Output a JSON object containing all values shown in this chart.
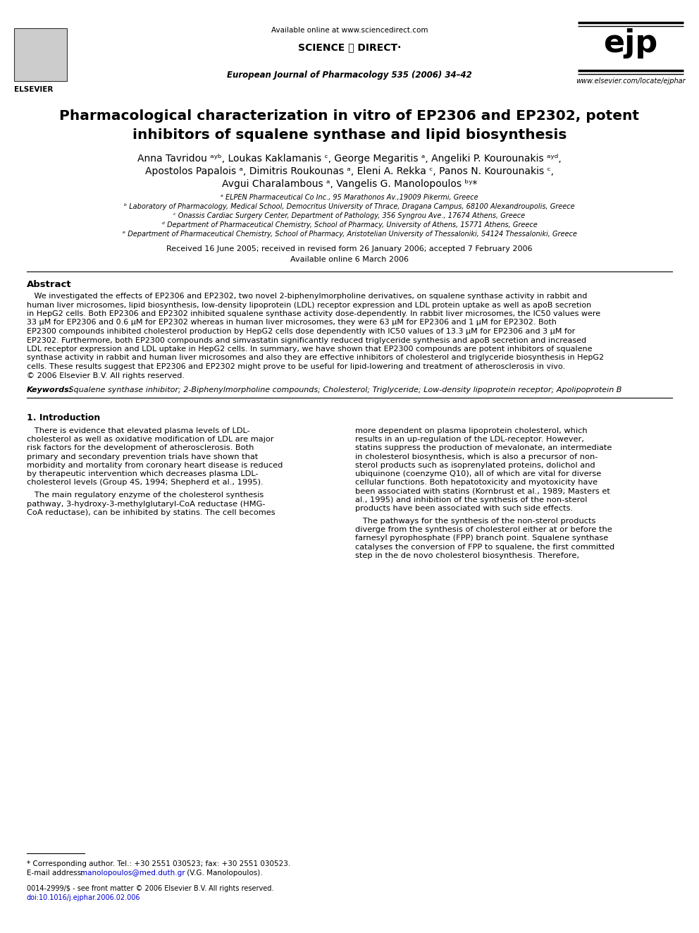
{
  "bg_color": "#ffffff",
  "header": {
    "available_online": "Available online at www.sciencedirect.com",
    "sciencedirect_text": "SCIENCE ⓐ DIRECT·",
    "journal_name": "European Journal of Pharmacology 535 (2006) 34–42",
    "ejp_text": "ejp",
    "website": "www.elsevier.com/locate/ejphar"
  },
  "title_line1": "Pharmacological characterization in vitro of EP2306 and EP2302, potent",
  "title_line2": "inhibitors of squalene synthase and lipid biosynthesis",
  "author_line1": "Anna Tavridou ᵃʸᵇ, Loukas Kaklamanis ᶜ, George Megaritis ᵃ, Angeliki P. Kourounakis ᵃʸᵈ,",
  "author_line2": "Apostolos Papalois ᵃ, Dimitris Roukounas ᵃ, Eleni A. Rekka ᶜ, Panos N. Kourounakis ᶜ,",
  "author_line3": "Avgui Charalambous ᵃ, Vangelis G. Manolopoulos ᵇʸ*",
  "affiliations": [
    "ᵃ ELPEN Pharmaceutical Co Inc., 95 Marathonos Av.,19009 Pikermi, Greece",
    "ᵇ Laboratory of Pharmacology, Medical School, Democritus University of Thrace, Dragana Campus, 68100 Alexandroupolis, Greece",
    "ᶜ Onassis Cardiac Surgery Center, Department of Pathology, 356 Syngrou Ave., 17674 Athens, Greece",
    "ᵈ Department of Pharmaceutical Chemistry, School of Pharmacy, University of Athens, 15771 Athens, Greece",
    "ᵉ Department of Pharmaceutical Chemistry, School of Pharmacy, Aristotelian University of Thessaloniki, 54124 Thessaloniki, Greece"
  ],
  "received_line": "Received 16 June 2005; received in revised form 26 January 2006; accepted 7 February 2006",
  "available_online_article": "Available online 6 March 2006",
  "abstract_title": "Abstract",
  "abstract_indent": "   We investigated the effects of EP2306 and EP2302, two novel 2-biphenylmorpholine derivatives, on squalene synthase activity in rabbit and\nhuman liver microsomes, lipid biosynthesis, low-density lipoprotein (LDL) receptor expression and LDL protein uptake as well as apoB secretion\nin HepG2 cells. Both EP2306 and EP2302 inhibited squalene synthase activity dose-dependently. In rabbit liver microsomes, the IC50 values were\n33 μM for EP2306 and 0.6 μM for EP2302 whereas in human liver microsomes, they were 63 μM for EP2306 and 1 μM for EP2302. Both\nEP2300 compounds inhibited cholesterol production by HepG2 cells dose dependently with IC50 values of 13.3 μM for EP2306 and 3 μM for\nEP2302. Furthermore, both EP2300 compounds and simvastatin significantly reduced triglyceride synthesis and apoB secretion and increased\nLDL receptor expression and LDL uptake in HepG2 cells. In summary, we have shown that EP2300 compounds are potent inhibitors of squalene\nsynthase activity in rabbit and human liver microsomes and also they are effective inhibitors of cholesterol and triglyceride biosynthesis in HepG2\ncells. These results suggest that EP2306 and EP2302 might prove to be useful for lipid-lowering and treatment of atherosclerosis in vivo.\n© 2006 Elsevier B.V. All rights reserved.",
  "keywords_label": "Keywords:",
  "keywords_text": " Squalene synthase inhibitor; 2-Biphenylmorpholine compounds; Cholesterol; Triglyceride; Low-density lipoprotein receptor; Apolipoprotein B",
  "section1_title": "1. Introduction",
  "col1_para1_lines": [
    "   There is evidence that elevated plasma levels of LDL-",
    "cholesterol as well as oxidative modification of LDL are major",
    "risk factors for the development of atherosclerosis. Both",
    "primary and secondary prevention trials have shown that",
    "morbidity and mortality from coronary heart disease is reduced",
    "by therapeutic intervention which decreases plasma LDL-",
    "cholesterol levels (Group 4S, 1994; Shepherd et al., 1995)."
  ],
  "col1_ref1_color": "#0000cc",
  "col1_para2_lines": [
    "   The main regulatory enzyme of the cholesterol synthesis",
    "pathway, 3-hydroxy-3-methylglutaryl-CoA reductase (HMG-",
    "CoA reductase), can be inhibited by statins. The cell becomes"
  ],
  "col2_para1_lines": [
    "more dependent on plasma lipoprotein cholesterol, which",
    "results in an up-regulation of the LDL-receptor. However,",
    "statins suppress the production of mevalonate, an intermediate",
    "in cholesterol biosynthesis, which is also a precursor of non-",
    "sterol products such as isoprenylated proteins, dolichol and",
    "ubiquinone (coenzyme Q10), all of which are vital for diverse",
    "cellular functions. Both hepatotoxicity and myotoxicity have",
    "been associated with statins (Kornbrust et al., 1989; Masters et",
    "al., 1995) and inhibition of the synthesis of the non-sterol",
    "products have been associated with such side effects."
  ],
  "col2_para2_lines": [
    "   The pathways for the synthesis of the non-sterol products",
    "diverge from the synthesis of cholesterol either at or before the",
    "farnesyl pyrophosphate (FPP) branch point. Squalene synthase",
    "catalyses the conversion of FPP to squalene, the first committed",
    "step in the de novo cholesterol biosynthesis. Therefore,"
  ],
  "footnote_line1": "* Corresponding author. Tel.: +30 2551 030523; fax: +30 2551 030523.",
  "footnote_line2_prefix": "E-mail address: ",
  "footnote_email": "manolopoulos@med.duth.gr",
  "footnote_line2_suffix": " (V.G. Manolopoulos).",
  "footer_left": "0014-2999/$ - see front matter © 2006 Elsevier B.V. All rights reserved.",
  "footer_doi": "doi:10.1016/j.ejphar.2006.02.006",
  "link_color": "#0000cc"
}
